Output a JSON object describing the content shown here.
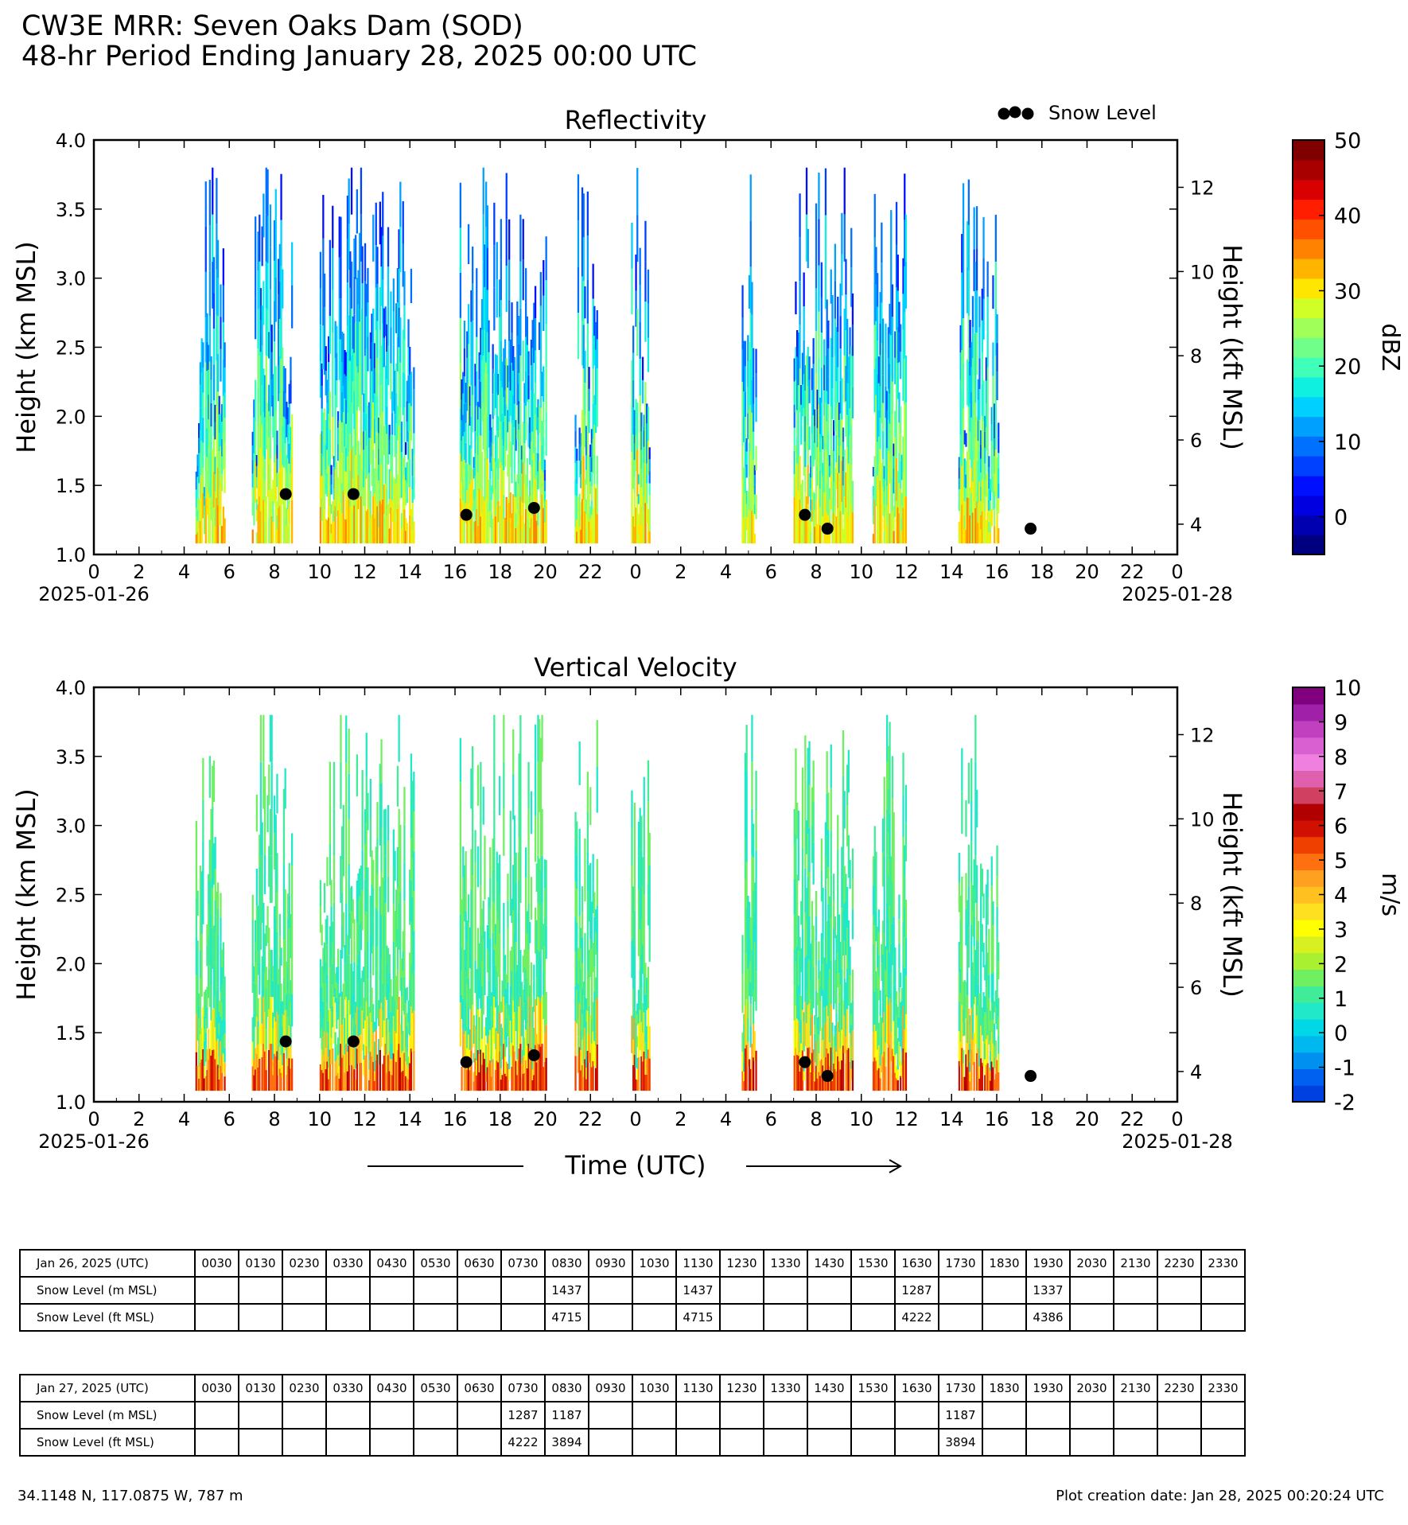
{
  "header": {
    "title_line1": "CW3E MRR: Seven Oaks Dam (SOD)",
    "title_line2": "48-hr Period Ending January 28, 2025 00:00 UTC"
  },
  "legend": {
    "snow_level_label": "Snow Level",
    "snow_level_color": "#000000"
  },
  "chart_data": [
    {
      "type": "heatmap",
      "title": "Reflectivity",
      "ylabel": "Height (km MSL)",
      "ylabel_right": "Height (kft MSL)",
      "ylim": [
        1.0,
        4.0
      ],
      "yticks": [
        "1.0",
        "1.5",
        "2.0",
        "2.5",
        "3.0",
        "3.5",
        "4.0"
      ],
      "yticks_right": [
        "4",
        "6",
        "8",
        "10",
        "12"
      ],
      "xlim_hours": [
        0,
        48
      ],
      "xticks": [
        "0",
        "2",
        "4",
        "6",
        "8",
        "10",
        "12",
        "14",
        "16",
        "18",
        "20",
        "22",
        "0",
        "2",
        "4",
        "6",
        "8",
        "10",
        "12",
        "14",
        "16",
        "18",
        "20",
        "22",
        "0"
      ],
      "date_start": "2025-01-26",
      "date_end": "2025-01-28",
      "colorbar": {
        "label": "dBZ",
        "range": [
          -5,
          50
        ],
        "ticks": [
          "0",
          "10",
          "20",
          "30",
          "40",
          "50"
        ],
        "colors": [
          "#00007f",
          "#0000b0",
          "#0000e0",
          "#0010ff",
          "#0040ff",
          "#0070ff",
          "#00a0ff",
          "#00d0ff",
          "#10f0e0",
          "#40ffb8",
          "#70ff88",
          "#a0ff58",
          "#d0ff28",
          "#ffe600",
          "#ffb400",
          "#ff8200",
          "#ff5000",
          "#ff1e00",
          "#d80000",
          "#a80000",
          "#800000"
        ]
      },
      "precip_blocks_hours": [
        [
          4.5,
          5.8
        ],
        [
          7.0,
          8.8
        ],
        [
          10.0,
          14.2
        ],
        [
          16.2,
          18.8
        ],
        [
          18.8,
          20.0
        ],
        [
          21.3,
          22.3
        ],
        [
          23.8,
          24.6
        ],
        [
          28.7,
          29.3
        ],
        [
          31.0,
          33.6
        ],
        [
          34.5,
          36.0
        ],
        [
          38.3,
          40.1
        ]
      ],
      "snow_level_points": [
        {
          "time": "2025-01-26 08:30",
          "height_km": 1.437
        },
        {
          "time": "2025-01-26 11:30",
          "height_km": 1.437
        },
        {
          "time": "2025-01-26 16:30",
          "height_km": 1.287
        },
        {
          "time": "2025-01-26 19:30",
          "height_km": 1.337
        },
        {
          "time": "2025-01-27 07:30",
          "height_km": 1.287
        },
        {
          "time": "2025-01-27 08:30",
          "height_km": 1.187
        },
        {
          "time": "2025-01-27 17:30",
          "height_km": 1.187
        }
      ]
    },
    {
      "type": "heatmap",
      "title": "Vertical Velocity",
      "ylabel": "Height (km MSL)",
      "ylabel_right": "Height (kft MSL)",
      "xlabel": "Time (UTC)",
      "ylim": [
        1.0,
        4.0
      ],
      "yticks": [
        "1.0",
        "1.5",
        "2.0",
        "2.5",
        "3.0",
        "3.5",
        "4.0"
      ],
      "yticks_right": [
        "4",
        "6",
        "8",
        "10",
        "12"
      ],
      "xlim_hours": [
        0,
        48
      ],
      "xticks": [
        "0",
        "2",
        "4",
        "6",
        "8",
        "10",
        "12",
        "14",
        "16",
        "18",
        "20",
        "22",
        "0",
        "2",
        "4",
        "6",
        "8",
        "10",
        "12",
        "14",
        "16",
        "18",
        "20",
        "22",
        "0"
      ],
      "date_start": "2025-01-26",
      "date_end": "2025-01-28",
      "colorbar": {
        "label": "m/s",
        "range": [
          -2,
          10
        ],
        "ticks": [
          "-2",
          "-1",
          "0",
          "1",
          "2",
          "3",
          "4",
          "5",
          "6",
          "7",
          "8",
          "9",
          "10"
        ],
        "colors": [
          "#0040e0",
          "#0060f0",
          "#0090f0",
          "#00b8f0",
          "#00d8e8",
          "#20e8c8",
          "#40ec98",
          "#70f060",
          "#a8f030",
          "#d8f020",
          "#ffff00",
          "#ffe020",
          "#ffc020",
          "#ffa020",
          "#ff7010",
          "#f04000",
          "#d01000",
          "#b00000",
          "#d04060",
          "#e060b0",
          "#f080e0",
          "#d860d0",
          "#c040c0",
          "#a020a8",
          "#800080"
        ]
      },
      "precip_blocks_hours": [
        [
          4.5,
          5.8
        ],
        [
          7.0,
          8.8
        ],
        [
          10.0,
          14.2
        ],
        [
          16.2,
          18.8
        ],
        [
          18.8,
          20.0
        ],
        [
          21.3,
          22.3
        ],
        [
          23.8,
          24.6
        ],
        [
          28.7,
          29.3
        ],
        [
          31.0,
          33.6
        ],
        [
          34.5,
          36.0
        ],
        [
          38.3,
          40.1
        ]
      ],
      "snow_level_points": [
        {
          "time": "2025-01-26 08:30",
          "height_km": 1.437
        },
        {
          "time": "2025-01-26 11:30",
          "height_km": 1.437
        },
        {
          "time": "2025-01-26 16:30",
          "height_km": 1.287
        },
        {
          "time": "2025-01-26 19:30",
          "height_km": 1.337
        },
        {
          "time": "2025-01-27 07:30",
          "height_km": 1.287
        },
        {
          "time": "2025-01-27 08:30",
          "height_km": 1.187
        },
        {
          "time": "2025-01-27 17:30",
          "height_km": 1.187
        }
      ]
    }
  ],
  "tables": [
    {
      "header_label": "Jan 26, 2025 (UTC)",
      "times": [
        "0030",
        "0130",
        "0230",
        "0330",
        "0430",
        "0530",
        "0630",
        "0730",
        "0830",
        "0930",
        "1030",
        "1130",
        "1230",
        "1330",
        "1430",
        "1530",
        "1630",
        "1730",
        "1830",
        "1930",
        "2030",
        "2130",
        "2230",
        "2330"
      ],
      "rows": [
        {
          "label": "Snow Level (m MSL)",
          "values": [
            "",
            "",
            "",
            "",
            "",
            "",
            "",
            "",
            "1437",
            "",
            "",
            "1437",
            "",
            "",
            "",
            "",
            "1287",
            "",
            "",
            "1337",
            "",
            "",
            "",
            ""
          ]
        },
        {
          "label": "Snow Level (ft MSL)",
          "values": [
            "",
            "",
            "",
            "",
            "",
            "",
            "",
            "",
            "4715",
            "",
            "",
            "4715",
            "",
            "",
            "",
            "",
            "4222",
            "",
            "",
            "4386",
            "",
            "",
            "",
            ""
          ]
        }
      ]
    },
    {
      "header_label": "Jan 27, 2025 (UTC)",
      "times": [
        "0030",
        "0130",
        "0230",
        "0330",
        "0430",
        "0530",
        "0630",
        "0730",
        "0830",
        "0930",
        "1030",
        "1130",
        "1230",
        "1330",
        "1430",
        "1530",
        "1630",
        "1730",
        "1830",
        "1930",
        "2030",
        "2130",
        "2230",
        "2330"
      ],
      "rows": [
        {
          "label": "Snow Level (m MSL)",
          "values": [
            "",
            "",
            "",
            "",
            "",
            "",
            "",
            "1287",
            "1187",
            "",
            "",
            "",
            "",
            "",
            "",
            "",
            "",
            "1187",
            "",
            "",
            "",
            "",
            "",
            ""
          ]
        },
        {
          "label": "Snow Level (ft MSL)",
          "values": [
            "",
            "",
            "",
            "",
            "",
            "",
            "",
            "4222",
            "3894",
            "",
            "",
            "",
            "",
            "",
            "",
            "",
            "",
            "3894",
            "",
            "",
            "",
            "",
            "",
            ""
          ]
        }
      ]
    }
  ],
  "footer": {
    "location": "34.1148 N, 117.0875 W, 787 m",
    "creation_date": "Plot creation date: Jan 28, 2025 00:20:24 UTC"
  }
}
